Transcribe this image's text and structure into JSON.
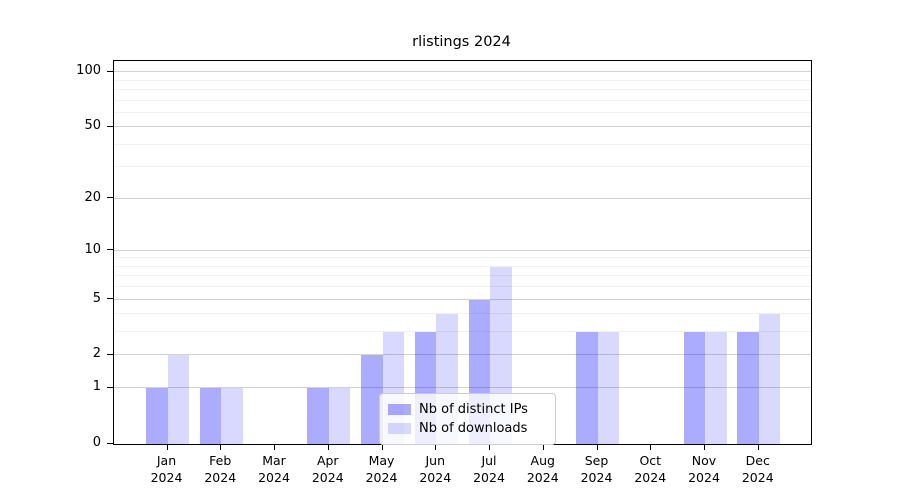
{
  "chart_data": {
    "type": "bar",
    "title": "rlistings 2024",
    "categories": [
      "Jan",
      "Feb",
      "Mar",
      "Apr",
      "May",
      "Jun",
      "Jul",
      "Aug",
      "Sep",
      "Oct",
      "Nov",
      "Dec"
    ],
    "x_year": "2024",
    "series": [
      {
        "name": "Nb of distinct IPs",
        "color": "rgba(0,0,255,0.33)",
        "values": [
          1,
          1,
          0,
          1,
          2,
          3,
          5,
          0,
          3,
          0,
          3,
          3
        ]
      },
      {
        "name": "Nb of downloads",
        "color": "rgba(0,0,255,0.15)",
        "values": [
          2,
          1,
          0,
          1,
          3,
          4,
          8,
          0,
          3,
          0,
          3,
          4
        ]
      }
    ],
    "yscale": "log1p",
    "ylim": [
      0,
      115
    ],
    "y_major_ticks": [
      0,
      1,
      2,
      5,
      10,
      20,
      50,
      100
    ],
    "y_tick_labels": [
      "0",
      "1",
      "2",
      "5",
      "10",
      "20",
      "50",
      "100"
    ],
    "y_minor_gridlines": [
      3,
      4,
      6,
      7,
      8,
      9,
      30,
      40,
      60,
      70,
      80,
      90
    ],
    "grid": "horizontal major and minor",
    "legend_position": "inside lower center",
    "xlabel": "",
    "ylabel": ""
  },
  "colors": {
    "bar_distinct_ips": "rgba(0,0,255,0.33)",
    "bar_downloads": "rgba(0,0,255,0.15)",
    "grid_major": "#d3d3d3",
    "grid_minor": "#f0f0f0",
    "axis_spine": "#000000",
    "legend_border": "#cccccc",
    "legend_background": "rgba(255,255,255,0.8)"
  }
}
